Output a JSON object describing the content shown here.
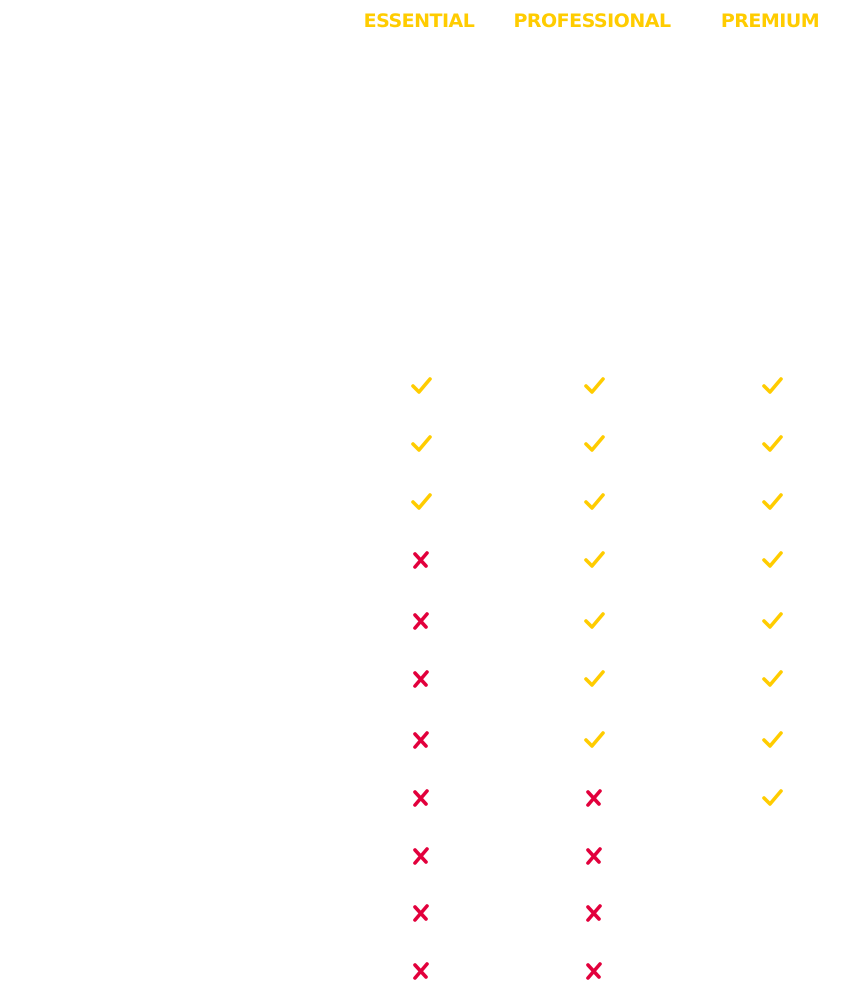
{
  "colors": {
    "check": "#FFCC00",
    "cross": "#E2003C",
    "header": "#FFCC00"
  },
  "plans": [
    {
      "label": "ESSENTIAL",
      "features": [
        true,
        true,
        true,
        false,
        false,
        false,
        false,
        false,
        false,
        false,
        false
      ]
    },
    {
      "label": "PROFESSIONAL",
      "features": [
        true,
        true,
        true,
        true,
        true,
        true,
        true,
        false,
        false,
        false,
        false
      ]
    },
    {
      "label": "PREMIUM",
      "features": [
        true,
        true,
        true,
        true,
        true,
        true,
        true,
        true,
        null,
        null,
        null
      ]
    }
  ],
  "icons": {
    "true": "check-icon",
    "false": "cross-icon"
  }
}
